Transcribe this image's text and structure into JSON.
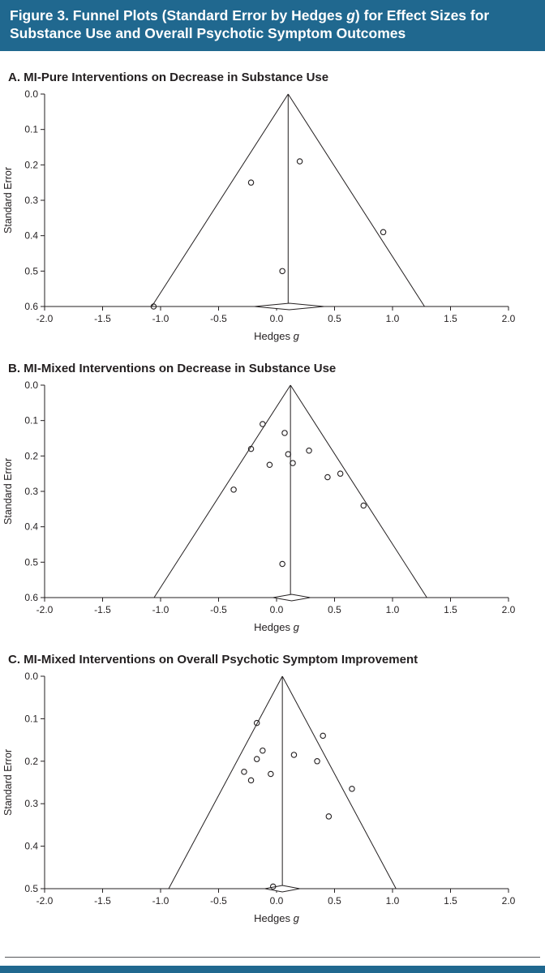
{
  "header": {
    "title_pre": "Figure 3. Funnel Plots (Standard Error by Hedges ",
    "title_g": "g",
    "title_post": ") for Effect Sizes for Substance Use and Overall Psychotic Symptom Outcomes",
    "bg_color": "#20688f",
    "text_color": "#ffffff"
  },
  "chart_data": [
    {
      "type": "scatter",
      "variant": "funnel-plot",
      "panel_label": "A. MI-Pure Interventions on Decrease in Substance Use",
      "xlabel_text": "Hedges ",
      "xlabel_italic": "g",
      "ylabel": "Standard Error",
      "xlim": [
        -2.0,
        2.0
      ],
      "ylim": [
        0.0,
        0.6
      ],
      "xticks": [
        -2.0,
        -1.5,
        -1.0,
        -0.5,
        0.0,
        0.5,
        1.0,
        1.5,
        2.0
      ],
      "yticks": [
        0.0,
        0.1,
        0.2,
        0.3,
        0.4,
        0.5,
        0.6
      ],
      "funnel": {
        "center": 0.1,
        "z": 1.96
      },
      "diamond": {
        "center": 0.11,
        "half_width": 0.3,
        "se": 0.6
      },
      "points": [
        [
          0.2,
          0.19
        ],
        [
          -0.22,
          0.25
        ],
        [
          0.92,
          0.39
        ],
        [
          0.05,
          0.5
        ],
        [
          -1.06,
          0.6
        ]
      ],
      "grid": false,
      "legend": "none"
    },
    {
      "type": "scatter",
      "variant": "funnel-plot",
      "panel_label": "B. MI-Mixed Interventions on Decrease in Substance Use",
      "xlabel_text": "Hedges ",
      "xlabel_italic": "g",
      "ylabel": "Standard Error",
      "xlim": [
        -2.0,
        2.0
      ],
      "ylim": [
        0.0,
        0.6
      ],
      "xticks": [
        -2.0,
        -1.5,
        -1.0,
        -0.5,
        0.0,
        0.5,
        1.0,
        1.5,
        2.0
      ],
      "yticks": [
        0.0,
        0.1,
        0.2,
        0.3,
        0.4,
        0.5,
        0.6
      ],
      "funnel": {
        "center": 0.12,
        "z": 1.96
      },
      "diamond": {
        "center": 0.13,
        "half_width": 0.16,
        "se": 0.6
      },
      "points": [
        [
          -0.12,
          0.11
        ],
        [
          0.07,
          0.135
        ],
        [
          -0.22,
          0.18
        ],
        [
          0.28,
          0.185
        ],
        [
          0.1,
          0.195
        ],
        [
          0.14,
          0.22
        ],
        [
          -0.06,
          0.225
        ],
        [
          0.55,
          0.25
        ],
        [
          0.44,
          0.26
        ],
        [
          -0.37,
          0.295
        ],
        [
          0.75,
          0.34
        ],
        [
          0.05,
          0.505
        ]
      ],
      "grid": false,
      "legend": "none"
    },
    {
      "type": "scatter",
      "variant": "funnel-plot",
      "panel_label": "C. MI-Mixed Interventions on Overall Psychotic Symptom Improvement",
      "xlabel_text": "Hedges ",
      "xlabel_italic": "g",
      "ylabel": "Standard Error",
      "xlim": [
        -2.0,
        2.0
      ],
      "ylim": [
        0.0,
        0.5
      ],
      "xticks": [
        -2.0,
        -1.5,
        -1.0,
        -0.5,
        0.0,
        0.5,
        1.0,
        1.5,
        2.0
      ],
      "yticks": [
        0.0,
        0.1,
        0.2,
        0.3,
        0.4,
        0.5
      ],
      "funnel": {
        "center": 0.05,
        "z": 1.96
      },
      "diamond": {
        "center": 0.05,
        "half_width": 0.15,
        "se": 0.5
      },
      "points": [
        [
          -0.17,
          0.11
        ],
        [
          0.4,
          0.14
        ],
        [
          -0.12,
          0.175
        ],
        [
          0.15,
          0.185
        ],
        [
          -0.17,
          0.195
        ],
        [
          0.35,
          0.2
        ],
        [
          -0.28,
          0.225
        ],
        [
          -0.05,
          0.23
        ],
        [
          -0.22,
          0.245
        ],
        [
          0.65,
          0.265
        ],
        [
          0.45,
          0.33
        ],
        [
          -0.03,
          0.495
        ]
      ],
      "grid": false,
      "legend": "none"
    }
  ],
  "style": {
    "ink_color": "#231f20",
    "point_radius": 3.2
  },
  "footer": {
    "rule_color": "#55565a",
    "bar_color": "#20688f"
  }
}
